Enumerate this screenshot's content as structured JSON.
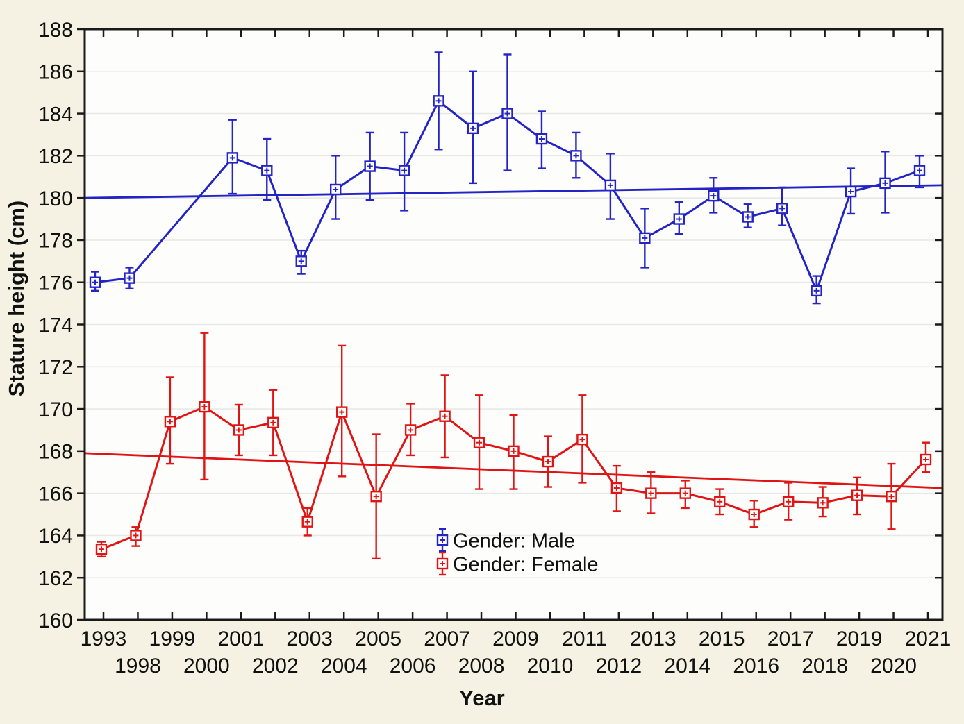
{
  "chart_data": {
    "type": "line",
    "title": "",
    "xlabel": "Year",
    "ylabel": "Stature height (cm)",
    "ylim": [
      160,
      188
    ],
    "ytick_step": 2,
    "y_tick_labels": [
      "160",
      "162",
      "164",
      "166",
      "168",
      "170",
      "172",
      "174",
      "176",
      "178",
      "180",
      "182",
      "184",
      "186",
      "188"
    ],
    "categories": [
      "1993",
      "1998",
      "1999",
      "2000",
      "2001",
      "2002",
      "2003",
      "2004",
      "2005",
      "2006",
      "2007",
      "2008",
      "2009",
      "2010",
      "2011",
      "2012",
      "2013",
      "2014",
      "2015",
      "2016",
      "2017",
      "2018",
      "2019",
      "2020",
      "2021"
    ],
    "x_label_rows": "staggered: odd years on upper row, even years on lower row",
    "grid": "horizontal-only",
    "legend": {
      "position": "inside-bottom-center",
      "items": [
        {
          "label": "Gender: Male",
          "color": "#2323c6"
        },
        {
          "label": "Gender: Female",
          "color": "#e01414"
        }
      ]
    },
    "series": [
      {
        "name": "Gender: Male",
        "color": "#2323c6",
        "marker": "open-square-with-cross",
        "values": [
          176.0,
          176.2,
          null,
          null,
          181.9,
          181.3,
          177.0,
          180.4,
          181.5,
          181.3,
          184.6,
          183.3,
          184.0,
          182.8,
          182.0,
          180.6,
          178.1,
          179.0,
          180.1,
          179.1,
          179.5,
          175.6,
          180.3,
          180.7,
          181.3
        ],
        "err_low": [
          175.6,
          175.7,
          null,
          null,
          180.2,
          179.9,
          176.4,
          179.0,
          179.9,
          179.4,
          182.3,
          180.7,
          181.3,
          181.4,
          180.95,
          179.0,
          176.7,
          178.3,
          179.3,
          178.6,
          178.7,
          175.0,
          179.25,
          179.3,
          180.5
        ],
        "err_high": [
          176.5,
          176.7,
          null,
          null,
          183.7,
          182.8,
          177.5,
          182.0,
          183.1,
          183.1,
          186.9,
          186.0,
          186.8,
          184.1,
          183.1,
          182.1,
          179.5,
          179.8,
          180.95,
          179.7,
          180.5,
          176.3,
          181.4,
          182.2,
          182.0
        ]
      },
      {
        "name": "Gender: Female",
        "color": "#e01414",
        "marker": "open-square-with-cross",
        "values": [
          163.35,
          164.0,
          169.4,
          170.1,
          169.0,
          169.35,
          164.65,
          169.85,
          165.85,
          169.0,
          169.65,
          168.4,
          168.0,
          167.5,
          168.55,
          166.25,
          166.0,
          166.0,
          165.6,
          165.0,
          165.6,
          165.55,
          165.9,
          165.85,
          167.6
        ],
        "err_low": [
          163.0,
          163.5,
          167.4,
          166.65,
          167.8,
          167.8,
          164.0,
          166.8,
          162.9,
          167.8,
          167.7,
          166.2,
          166.2,
          166.3,
          166.5,
          165.15,
          165.05,
          165.3,
          165.0,
          164.4,
          164.75,
          164.9,
          165.0,
          164.3,
          167.0
        ],
        "err_high": [
          163.7,
          164.4,
          171.5,
          173.6,
          170.2,
          170.9,
          165.3,
          173.0,
          168.8,
          170.25,
          171.6,
          170.65,
          169.7,
          168.7,
          170.65,
          167.3,
          167.0,
          166.6,
          166.2,
          165.65,
          166.5,
          166.3,
          166.75,
          167.4,
          168.4
        ]
      }
    ],
    "trend_lines": [
      {
        "series": "Gender: Male",
        "color": "#2323c6",
        "start_value": 180.0,
        "end_value": 180.6
      },
      {
        "series": "Gender: Female",
        "color": "#e01414",
        "start_value": 167.9,
        "end_value": 166.25
      }
    ]
  },
  "colors": {
    "outer_background": "#f5f2e3",
    "plot_background": "#fdfdfc",
    "gridline": "#e8e8e5",
    "axis": "#1a1a1a",
    "male": "#2323c6",
    "female": "#e01414",
    "text": "#111111"
  }
}
